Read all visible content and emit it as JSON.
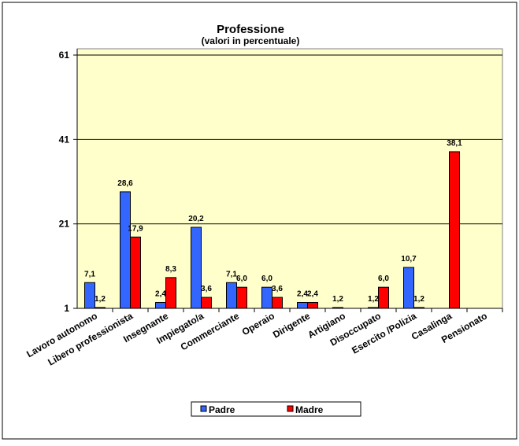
{
  "chart_data": {
    "type": "bar",
    "title": "Professione",
    "subtitle": "(valori in percentuale)",
    "categories": [
      "Lavoro autonomo",
      "Libero professionista",
      "Insegnante",
      "Impiegato/a",
      "Commerciante",
      "Operaio",
      "Dirigente",
      "Artigiano",
      "Disoccupato",
      "Esercito /Polizia",
      "Casalinga",
      "Pensionato"
    ],
    "series": [
      {
        "name": "Padre",
        "color": "#3366FF",
        "values": [
          7.1,
          28.6,
          2.4,
          20.2,
          7.1,
          6.0,
          2.4,
          1.2,
          1.2,
          10.7,
          null,
          null
        ]
      },
      {
        "name": "Madre",
        "color": "#FF0000",
        "values": [
          1.2,
          17.9,
          8.3,
          3.6,
          6.0,
          3.6,
          2.4,
          null,
          6.0,
          1.2,
          38.1,
          null
        ]
      }
    ],
    "yticks": [
      1,
      21,
      41,
      61
    ],
    "ylim": [
      1,
      61
    ],
    "grid": true,
    "plot_background": "#FFFFCC",
    "legend": "bottom"
  }
}
